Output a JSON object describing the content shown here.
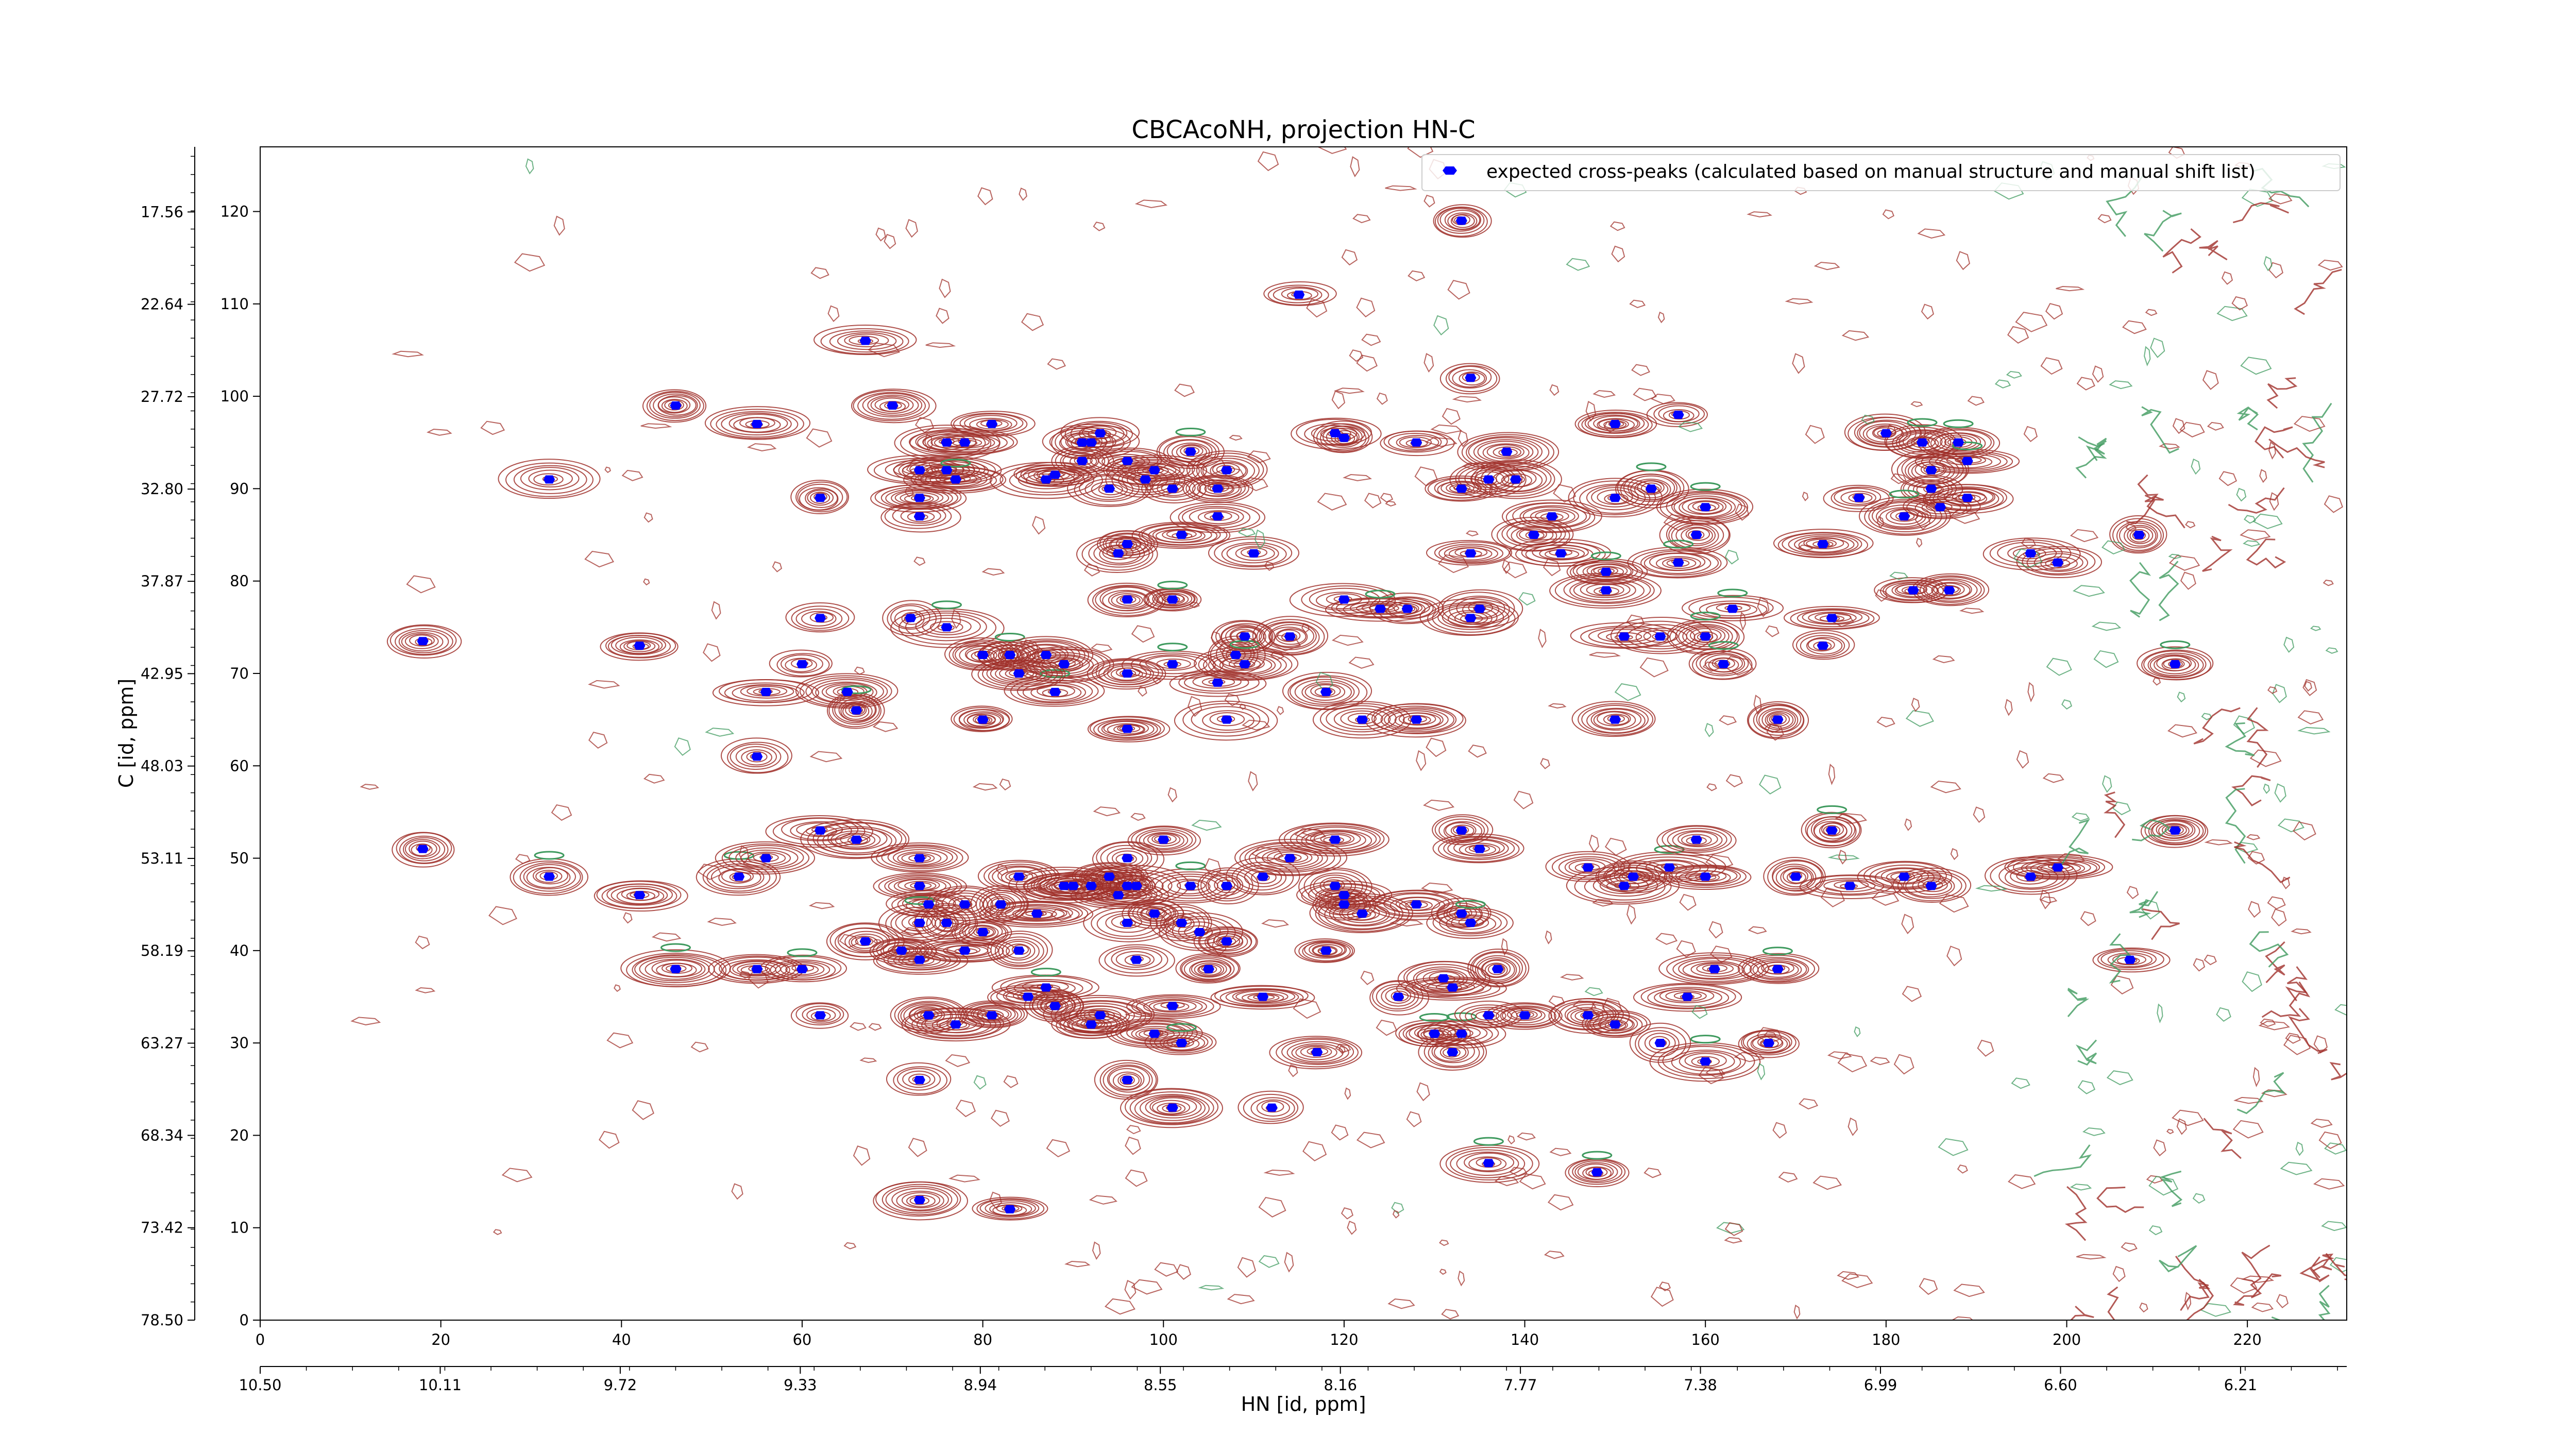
{
  "chart_data": {
    "type": "scatter",
    "title": "CBCAcoNH, projection HN-C",
    "xlabel": "HN [id, ppm]",
    "ylabel": "C [id, ppm]",
    "x_index_range": [
      0,
      231
    ],
    "y_index_range": [
      0,
      127
    ],
    "x_index_ticks": [
      "0",
      "20",
      "40",
      "60",
      "80",
      "100",
      "120",
      "140",
      "160",
      "180",
      "200",
      "220"
    ],
    "y_index_ticks": [
      "0",
      "10",
      "20",
      "30",
      "40",
      "50",
      "60",
      "70",
      "80",
      "90",
      "100",
      "110",
      "120"
    ],
    "x_ppm_ticks": [
      "10.50",
      "10.11",
      "9.72",
      "9.33",
      "8.94",
      "8.55",
      "8.16",
      "7.77",
      "7.38",
      "6.99",
      "6.60",
      "6.21"
    ],
    "x_ppm_range": [
      10.5,
      5.98
    ],
    "y_ppm_ticks": [
      "78.50",
      "73.42",
      "68.34",
      "63.27",
      "58.19",
      "53.11",
      "48.03",
      "42.95",
      "37.87",
      "32.80",
      "27.72",
      "22.64",
      "17.56"
    ],
    "y_ppm_range": [
      78.5,
      13.98
    ],
    "legend": {
      "position": "top-right",
      "label": "expected cross-peaks (calculated based on manual structure and manual shift list)"
    },
    "colors": {
      "peak_marker": "#0000ff",
      "positive_contour": "#a0302a",
      "negative_contour": "#3e9a5e",
      "axes": "#000000"
    },
    "grid": false,
    "series": [
      {
        "name": "expected cross-peaks (calculated based on manual structure and manual shift list)",
        "points": [
          [
            18,
            73.5
          ],
          [
            42,
            73
          ],
          [
            46,
            99
          ],
          [
            55,
            97
          ],
          [
            32,
            91
          ],
          [
            67,
            106
          ],
          [
            70,
            99
          ],
          [
            81,
            97
          ],
          [
            73,
            92
          ],
          [
            73,
            89
          ],
          [
            73,
            87
          ],
          [
            76,
            92
          ],
          [
            76,
            95
          ],
          [
            78,
            95
          ],
          [
            77,
            91
          ],
          [
            87,
            91
          ],
          [
            88,
            91.5
          ],
          [
            91,
            95
          ],
          [
            92,
            95
          ],
          [
            93,
            96
          ],
          [
            91,
            93
          ],
          [
            94,
            90
          ],
          [
            96,
            93
          ],
          [
            98,
            91
          ],
          [
            99,
            92
          ],
          [
            101,
            90
          ],
          [
            103,
            94
          ],
          [
            107,
            92
          ],
          [
            106,
            90
          ],
          [
            106,
            87
          ],
          [
            102,
            85
          ],
          [
            96,
            84
          ],
          [
            95,
            83
          ],
          [
            96,
            78
          ],
          [
            101,
            78
          ],
          [
            110,
            83
          ],
          [
            115,
            111
          ],
          [
            119,
            96
          ],
          [
            120,
            95.5
          ],
          [
            128,
            95
          ],
          [
            133,
            90
          ],
          [
            134,
            102
          ],
          [
            133,
            119
          ],
          [
            136,
            91
          ],
          [
            138,
            94
          ],
          [
            139,
            91
          ],
          [
            134,
            83
          ],
          [
            141,
            85
          ],
          [
            143,
            87
          ],
          [
            144,
            83
          ],
          [
            149,
            81
          ],
          [
            149,
            79
          ],
          [
            150,
            97
          ],
          [
            150,
            89
          ],
          [
            154,
            90
          ],
          [
            157,
            98
          ],
          [
            160,
            88
          ],
          [
            159,
            85
          ],
          [
            157,
            82
          ],
          [
            163,
            77
          ],
          [
            62,
            89
          ],
          [
            62,
            76
          ],
          [
            72,
            76
          ],
          [
            76,
            75
          ],
          [
            80,
            72
          ],
          [
            83,
            72
          ],
          [
            87,
            72
          ],
          [
            89,
            71
          ],
          [
            88,
            68
          ],
          [
            84,
            70
          ],
          [
            65,
            68
          ],
          [
            66,
            66
          ],
          [
            56,
            68
          ],
          [
            60,
            71
          ],
          [
            55,
            61
          ],
          [
            80,
            65
          ],
          [
            96,
            64
          ],
          [
            106,
            69
          ],
          [
            109,
            74
          ],
          [
            108,
            72
          ],
          [
            109,
            71
          ],
          [
            114,
            74
          ],
          [
            120,
            78
          ],
          [
            118,
            68
          ],
          [
            122,
            65
          ],
          [
            127,
            77
          ],
          [
            128,
            65
          ],
          [
            134,
            76
          ],
          [
            135,
            77
          ],
          [
            101,
            71
          ],
          [
            96,
            70
          ],
          [
            107,
            65
          ],
          [
            124,
            77
          ],
          [
            151,
            74
          ],
          [
            155,
            74
          ],
          [
            160,
            74
          ],
          [
            162,
            71
          ],
          [
            150,
            65
          ],
          [
            168,
            65
          ],
          [
            173,
            73
          ],
          [
            174,
            76
          ],
          [
            173,
            84
          ],
          [
            177,
            89
          ],
          [
            180,
            96
          ],
          [
            184,
            95
          ],
          [
            185,
            92
          ],
          [
            188,
            95
          ],
          [
            189,
            93
          ],
          [
            185,
            90
          ],
          [
            186,
            88
          ],
          [
            182,
            87
          ],
          [
            189,
            89
          ],
          [
            183,
            79
          ],
          [
            187,
            79
          ],
          [
            196,
            83
          ],
          [
            199,
            82
          ],
          [
            208,
            85
          ],
          [
            212,
            71
          ],
          [
            212,
            53
          ],
          [
            18,
            51
          ],
          [
            32,
            48
          ],
          [
            42,
            46
          ],
          [
            46,
            38
          ],
          [
            55,
            38
          ],
          [
            60,
            38
          ],
          [
            53,
            48
          ],
          [
            56,
            50
          ],
          [
            62,
            53
          ],
          [
            66,
            52
          ],
          [
            67,
            41
          ],
          [
            71,
            40
          ],
          [
            73,
            39
          ],
          [
            73,
            47
          ],
          [
            74,
            45
          ],
          [
            73,
            43
          ],
          [
            73,
            50
          ],
          [
            76,
            43
          ],
          [
            78,
            45
          ],
          [
            78,
            40
          ],
          [
            80,
            42
          ],
          [
            82,
            45
          ],
          [
            74,
            33
          ],
          [
            77,
            32
          ],
          [
            81,
            33
          ],
          [
            87,
            36
          ],
          [
            86,
            44
          ],
          [
            89,
            47
          ],
          [
            90,
            47
          ],
          [
            92,
            47
          ],
          [
            94,
            48
          ],
          [
            96,
            47
          ],
          [
            95,
            46
          ],
          [
            96,
            50
          ],
          [
            97,
            47
          ],
          [
            99,
            44
          ],
          [
            96,
            43
          ],
          [
            97,
            39
          ],
          [
            102,
            43
          ],
          [
            103,
            47
          ],
          [
            104,
            42
          ],
          [
            105,
            38
          ],
          [
            107,
            41
          ],
          [
            107,
            47
          ],
          [
            111,
            48
          ],
          [
            114,
            50
          ],
          [
            119,
            52
          ],
          [
            119,
            47
          ],
          [
            120,
            45
          ],
          [
            118,
            40
          ],
          [
            120,
            46
          ],
          [
            122,
            44
          ],
          [
            100,
            52
          ],
          [
            84,
            48
          ],
          [
            84,
            40
          ],
          [
            85,
            35
          ],
          [
            88,
            34
          ],
          [
            93,
            33
          ],
          [
            92,
            32
          ],
          [
            101,
            34
          ],
          [
            99,
            31
          ],
          [
            102,
            30
          ],
          [
            96,
            26
          ],
          [
            73,
            26
          ],
          [
            62,
            33
          ],
          [
            101,
            23
          ],
          [
            111,
            35
          ],
          [
            112,
            23
          ],
          [
            117,
            29
          ],
          [
            73,
            13
          ],
          [
            83,
            12
          ],
          [
            126,
            35
          ],
          [
            131,
            37
          ],
          [
            132,
            36
          ],
          [
            130,
            31
          ],
          [
            133,
            31
          ],
          [
            132,
            29
          ],
          [
            136,
            33
          ],
          [
            140,
            33
          ],
          [
            136,
            17
          ],
          [
            137,
            38
          ],
          [
            128,
            45
          ],
          [
            133,
            44
          ],
          [
            134,
            43
          ],
          [
            135,
            51
          ],
          [
            133,
            53
          ],
          [
            147,
            33
          ],
          [
            150,
            32
          ],
          [
            147,
            49
          ],
          [
            152,
            48
          ],
          [
            151,
            47
          ],
          [
            156,
            49
          ],
          [
            160,
            48
          ],
          [
            159,
            52
          ],
          [
            158,
            35
          ],
          [
            161,
            38
          ],
          [
            155,
            30
          ],
          [
            160,
            28
          ],
          [
            167,
            30
          ],
          [
            168,
            38
          ],
          [
            170,
            48
          ],
          [
            174,
            53
          ],
          [
            176,
            47
          ],
          [
            182,
            48
          ],
          [
            185,
            47
          ],
          [
            196,
            48
          ],
          [
            199,
            49
          ],
          [
            207,
            39
          ],
          [
            148,
            16
          ]
        ]
      }
    ]
  }
}
